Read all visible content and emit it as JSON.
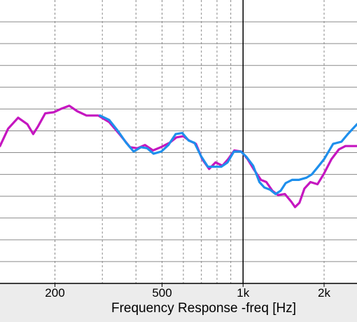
{
  "chart_data": {
    "type": "line",
    "xlabel": "Frequency Response -freq [Hz]",
    "x_scale": "log",
    "xlim": [
      125,
      2650
    ],
    "ylim": [
      0,
      13
    ],
    "grid": true,
    "x_ticks": [
      {
        "value": 200,
        "label": "200"
      },
      {
        "value": 500,
        "label": "500"
      },
      {
        "value": 1000,
        "label": "1k"
      },
      {
        "value": 2000,
        "label": "2k"
      }
    ],
    "x_minor_grid": [
      200,
      300,
      400,
      500,
      600,
      700,
      800,
      900,
      2000
    ],
    "x_major_grid": [
      1000
    ],
    "y_grid": [
      1,
      2,
      3,
      4,
      5,
      6,
      7,
      8,
      9,
      10,
      11,
      12
    ],
    "series": [
      {
        "color": "#c516c0",
        "points": [
          [
            125,
            6.3
          ],
          [
            134,
            7.1
          ],
          [
            146,
            7.6
          ],
          [
            158,
            7.3
          ],
          [
            166,
            6.85
          ],
          [
            173,
            7.2
          ],
          [
            184,
            7.8
          ],
          [
            198,
            7.85
          ],
          [
            210,
            8.0
          ],
          [
            226,
            8.15
          ],
          [
            242,
            7.9
          ],
          [
            262,
            7.7
          ],
          [
            290,
            7.7
          ],
          [
            318,
            7.4
          ],
          [
            350,
            6.8
          ],
          [
            380,
            6.25
          ],
          [
            405,
            6.2
          ],
          [
            432,
            6.35
          ],
          [
            463,
            6.1
          ],
          [
            495,
            6.25
          ],
          [
            533,
            6.45
          ],
          [
            566,
            6.7
          ],
          [
            600,
            6.75
          ],
          [
            631,
            6.55
          ],
          [
            668,
            6.4
          ],
          [
            705,
            5.7
          ],
          [
            748,
            5.25
          ],
          [
            790,
            5.55
          ],
          [
            838,
            5.4
          ],
          [
            880,
            5.7
          ],
          [
            928,
            6.1
          ],
          [
            985,
            6.05
          ],
          [
            1040,
            5.7
          ],
          [
            1100,
            5.2
          ],
          [
            1165,
            4.75
          ],
          [
            1220,
            4.65
          ],
          [
            1285,
            4.25
          ],
          [
            1350,
            4.05
          ],
          [
            1430,
            4.1
          ],
          [
            1510,
            3.75
          ],
          [
            1560,
            3.5
          ],
          [
            1620,
            3.7
          ],
          [
            1690,
            4.35
          ],
          [
            1780,
            4.65
          ],
          [
            1890,
            4.55
          ],
          [
            1990,
            5.0
          ],
          [
            2130,
            5.7
          ],
          [
            2270,
            6.15
          ],
          [
            2400,
            6.3
          ],
          [
            2650,
            6.3
          ]
        ]
      },
      {
        "color": "#1e8fec",
        "points": [
          [
            294,
            7.7
          ],
          [
            318,
            7.5
          ],
          [
            345,
            6.95
          ],
          [
            368,
            6.45
          ],
          [
            392,
            6.05
          ],
          [
            418,
            6.25
          ],
          [
            440,
            6.2
          ],
          [
            465,
            5.95
          ],
          [
            497,
            6.05
          ],
          [
            528,
            6.35
          ],
          [
            562,
            6.85
          ],
          [
            594,
            6.9
          ],
          [
            628,
            6.55
          ],
          [
            660,
            6.45
          ],
          [
            697,
            5.85
          ],
          [
            740,
            5.35
          ],
          [
            783,
            5.35
          ],
          [
            830,
            5.35
          ],
          [
            876,
            5.55
          ],
          [
            925,
            6.05
          ],
          [
            982,
            6.05
          ],
          [
            1030,
            5.8
          ],
          [
            1090,
            5.4
          ],
          [
            1150,
            4.65
          ],
          [
            1200,
            4.4
          ],
          [
            1260,
            4.3
          ],
          [
            1320,
            4.1
          ],
          [
            1380,
            4.25
          ],
          [
            1440,
            4.6
          ],
          [
            1520,
            4.75
          ],
          [
            1610,
            4.75
          ],
          [
            1720,
            4.85
          ],
          [
            1800,
            5.0
          ],
          [
            1900,
            5.35
          ],
          [
            2000,
            5.7
          ],
          [
            2160,
            6.4
          ],
          [
            2320,
            6.5
          ],
          [
            2450,
            6.85
          ],
          [
            2650,
            7.3
          ]
        ]
      }
    ]
  }
}
